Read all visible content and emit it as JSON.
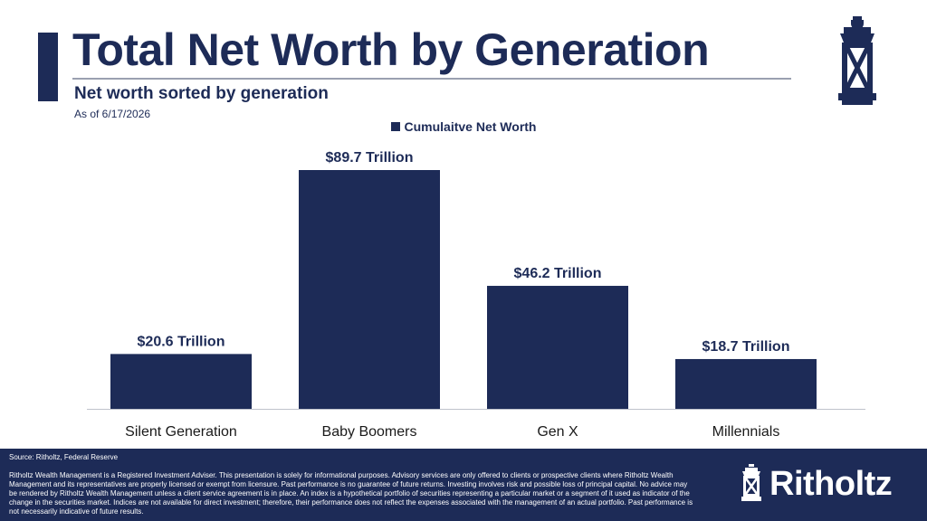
{
  "header": {
    "title": "Total Net Worth by Generation",
    "subtitle": "Net worth sorted by generation",
    "as_of": "As of 6/17/2026"
  },
  "chart_data": {
    "type": "bar",
    "title": "Total Net Worth by Generation",
    "subtitle": "Net worth sorted by generation",
    "categories": [
      "Silent Generation",
      "Baby Boomers",
      "Gen X",
      "Millennials"
    ],
    "series": [
      {
        "name": "Cumulaitve Net Worth",
        "values": [
          20.6,
          89.7,
          46.2,
          18.7
        ],
        "labels": [
          "$20.6 Trillion",
          "$89.7 Trillion",
          "$46.2 Trillion",
          "$18.7 Trillion"
        ]
      }
    ],
    "xlabel": "",
    "ylabel": "",
    "ylim": [
      0,
      89.7
    ],
    "grid": false,
    "legend": "top-center",
    "bar_color": "#1d2b57"
  },
  "footer": {
    "source": "Source: Ritholtz, Federal Reserve",
    "disclaimer": "Ritholtz Wealth Management is a Registered Investment Adviser. This presentation is solely for informational purposes. Advisory services are only offered to clients or prospective clients where Ritholtz Wealth Management and its representatives are properly licensed or exempt from licensure. Past performance is no guarantee of future returns. Investing involves risk and possible loss of principal capital. No advice may be rendered by Ritholtz Wealth Management unless a client service agreement is in place. An index is a hypothetical portfolio of securities representing a particular market or a segment of it used as indicator of the change in the securities market. Indices are not available for direct investment; therefore, their performance does not reflect the expenses associated with the management of an actual portfolio. Past performance is not necessarily indicative of future results.",
    "brand": "Ritholtz",
    "brand_icon": "lantern-icon"
  },
  "colors": {
    "navy": "#1d2b57",
    "white": "#ffffff",
    "rule": "#9aa0b0"
  }
}
